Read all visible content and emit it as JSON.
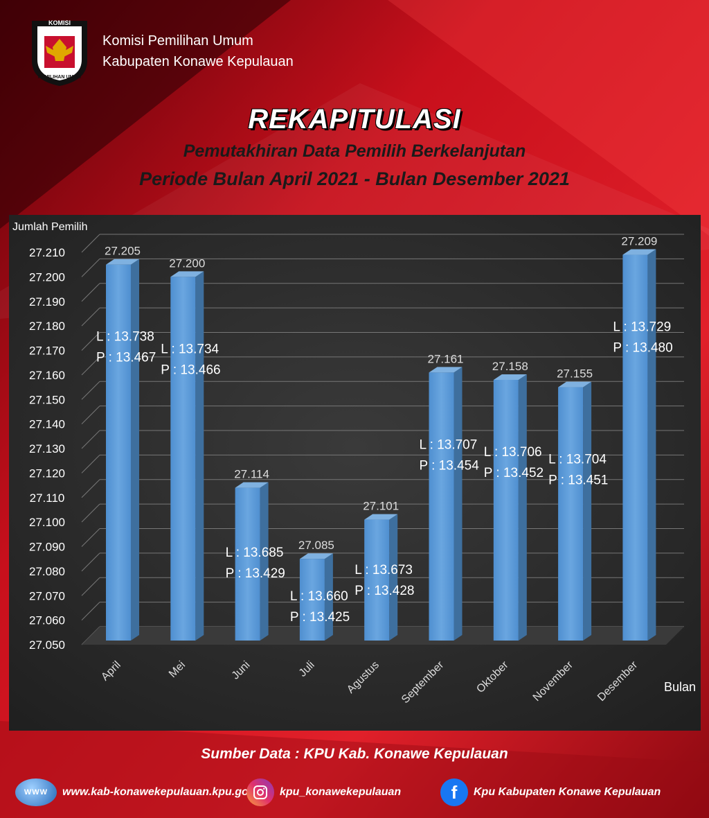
{
  "header": {
    "logo_top_text": "KOMISI",
    "logo_bottom_text": "PEMILIHAN UMUM",
    "org_line1": "Komisi Pemilihan Umum",
    "org_line2": "Kabupaten Konawe Kepulauan"
  },
  "title": "REKAPITULASI",
  "subtitle1": "Pemutakhiran Data Pemilih Berkelanjutan",
  "subtitle2": "Periode Bulan April 2021 - Bulan Desember 2021",
  "chart_data": {
    "type": "bar",
    "ylabel": "Jumlah Pemilih",
    "xlabel": "Bulan",
    "ylim": [
      27050,
      27210
    ],
    "ytick_step": 10,
    "yticks": [
      "27.210",
      "27.200",
      "27.190",
      "27.180",
      "27.170",
      "27.160",
      "27.150",
      "27.140",
      "27.130",
      "27.120",
      "27.110",
      "27.100",
      "27.090",
      "27.080",
      "27.070",
      "27.060",
      "27.050"
    ],
    "categories": [
      "April",
      "Mei",
      "Juni",
      "Juli",
      "Agustus",
      "September",
      "Oktober",
      "November",
      "Desember"
    ],
    "values": [
      27205,
      27200,
      27114,
      27085,
      27101,
      27161,
      27158,
      27155,
      27209
    ],
    "value_labels": [
      "27.205",
      "27.200",
      "27.114",
      "27.085",
      "27.101",
      "27.161",
      "27.158",
      "27.155",
      "27.209"
    ],
    "l_labels": [
      "L : 13.738",
      "L : 13.734",
      "L : 13.685",
      "L : 13.660",
      "L : 13.673",
      "L : 13.707",
      "L : 13.706",
      "L : 13.704",
      "L : 13.729"
    ],
    "p_labels": [
      "P : 13.467",
      "P : 13.466",
      "P : 13.429",
      "P : 13.425",
      "P : 13.428",
      "P : 13.454",
      "P : 13.452",
      "P : 13.451",
      "P : 13.480"
    ],
    "grid": true,
    "bar_color": "#5b9bd5",
    "bar_side_color": "#3e6f9e",
    "bar_top_color": "#7fb1e0",
    "background": "#2e2e2e"
  },
  "source": "Sumber Data : KPU Kab. Konawe Kepulauan",
  "footer": {
    "website_icon_text": "WWW",
    "website": "www.kab-konawekepulauan.kpu.go.id",
    "instagram": "kpu_konawekepulauan",
    "facebook": "Kpu Kabupaten Konawe Kepulauan"
  },
  "colors": {
    "accent": "#c8102e",
    "dark_red": "#7a0a12"
  }
}
